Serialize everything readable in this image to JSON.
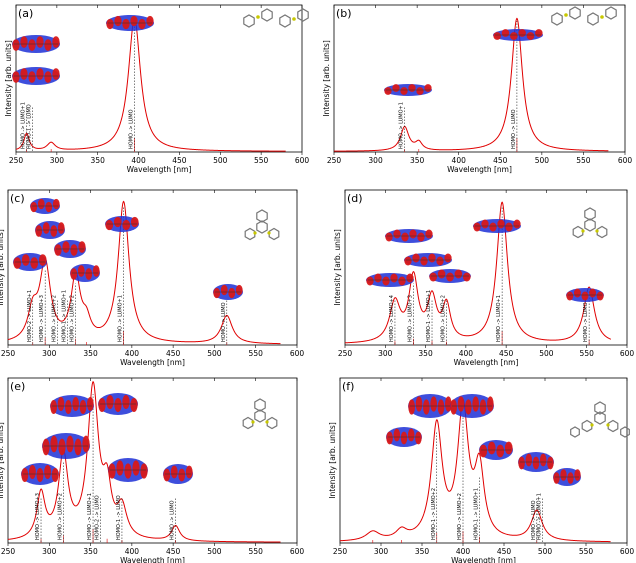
{
  "figure": {
    "colors": {
      "curve": "#e00000",
      "orbital_pos": "#d81818",
      "orbital_neg": "#1c2fd6",
      "molecule": "#777777",
      "sulfur": "#c8c800"
    }
  },
  "chart_data": [
    {
      "type": "line",
      "panel": "(a)",
      "xlabel": "Wavelength [nm]",
      "ylabel": "Intensity [arb. units]",
      "xlim": [
        250,
        600
      ],
      "xticks": [
        250,
        300,
        350,
        400,
        450,
        500,
        550,
        600
      ],
      "peaks": [
        {
          "center": 263,
          "height": 0.13,
          "width": 4
        },
        {
          "center": 293,
          "height": 0.06,
          "width": 6
        },
        {
          "center": 395,
          "height": 1.0,
          "width": 9
        }
      ],
      "transitions": [
        {
          "x": 263,
          "label": "HOMO -> LUMO+1"
        },
        {
          "x": 263,
          "label": "HOMO-1 -> LUMO"
        },
        {
          "x": 395,
          "label": "HOMO -> LUMO"
        }
      ]
    },
    {
      "type": "line",
      "panel": "(b)",
      "xlabel": "Wavelength [nm]",
      "ylabel": "Intensity [arb. units]",
      "xlim": [
        250,
        600
      ],
      "xticks": [
        250,
        300,
        350,
        400,
        450,
        500,
        550,
        600
      ],
      "peaks": [
        {
          "center": 335,
          "height": 0.18,
          "width": 6
        },
        {
          "center": 352,
          "height": 0.06,
          "width": 5
        },
        {
          "center": 470,
          "height": 1.0,
          "width": 8
        }
      ],
      "transitions": [
        {
          "x": 335,
          "label": "HOMO -> LUMO+1"
        },
        {
          "x": 470,
          "label": "HOMO -> LUMO"
        }
      ]
    },
    {
      "type": "line",
      "panel": "(c)",
      "xlabel": "Wavelength [nm]",
      "ylabel": "Intensity [arb. units]",
      "xlim": [
        250,
        600
      ],
      "xticks": [
        250,
        300,
        350,
        400,
        450,
        500,
        550,
        600
      ],
      "peaks": [
        {
          "center": 280,
          "height": 0.2,
          "width": 7
        },
        {
          "center": 295,
          "height": 0.55,
          "width": 8
        },
        {
          "center": 332,
          "height": 0.45,
          "width": 7
        },
        {
          "center": 345,
          "height": 0.12,
          "width": 6
        },
        {
          "center": 390,
          "height": 1.0,
          "width": 8
        },
        {
          "center": 515,
          "height": 0.2,
          "width": 8
        }
      ],
      "transitions": [
        {
          "x": 280,
          "label": "HOMO-2 -> LUMO+1"
        },
        {
          "x": 295,
          "label": "HOMO -> LUMO+3"
        },
        {
          "x": 310,
          "label": "HOMO -> LUMO+2"
        },
        {
          "x": 322,
          "label": "HOMO-1 -> LUMO+1"
        },
        {
          "x": 332,
          "label": "HOMO -> LUMO+2"
        },
        {
          "x": 390,
          "label": "HOMO -> LUMO+1"
        },
        {
          "x": 515,
          "label": "HOMO -> LUMO"
        }
      ]
    },
    {
      "type": "line",
      "panel": "(d)",
      "xlabel": "Wavelength [nm]",
      "ylabel": "Intensity [arb. units]",
      "xlim": [
        250,
        600
      ],
      "xticks": [
        250,
        300,
        350,
        400,
        450,
        500,
        550,
        600
      ],
      "peaks": [
        {
          "center": 312,
          "height": 0.28,
          "width": 8
        },
        {
          "center": 335,
          "height": 0.45,
          "width": 7
        },
        {
          "center": 358,
          "height": 0.3,
          "width": 7
        },
        {
          "center": 376,
          "height": 0.25,
          "width": 6
        },
        {
          "center": 445,
          "height": 1.0,
          "width": 8
        },
        {
          "center": 553,
          "height": 0.4,
          "width": 8
        }
      ],
      "transitions": [
        {
          "x": 312,
          "label": "HOMO -> LUMO+4"
        },
        {
          "x": 335,
          "label": "HOMO -> LUMO+3"
        },
        {
          "x": 358,
          "label": "HOMO-1 -> LUMO+1"
        },
        {
          "x": 376,
          "label": "HOMO -> LUMO+2"
        },
        {
          "x": 445,
          "label": "HOMO -> LUMO+1"
        },
        {
          "x": 553,
          "label": "HOMO -> LUMO"
        }
      ]
    },
    {
      "type": "line",
      "panel": "(e)",
      "xlabel": "Wavelength [nm]",
      "ylabel": "Intensity [arb. units]",
      "xlim": [
        250,
        600
      ],
      "xticks": [
        250,
        300,
        350,
        400,
        450,
        500,
        550,
        600
      ],
      "peaks": [
        {
          "center": 290,
          "height": 0.3,
          "width": 6
        },
        {
          "center": 317,
          "height": 0.55,
          "width": 7
        },
        {
          "center": 353,
          "height": 1.0,
          "width": 8
        },
        {
          "center": 370,
          "height": 0.3,
          "width": 6
        },
        {
          "center": 388,
          "height": 0.2,
          "width": 7
        },
        {
          "center": 453,
          "height": 0.1,
          "width": 6
        }
      ],
      "transitions": [
        {
          "x": 290,
          "label": "HOMO -> LUMO+3"
        },
        {
          "x": 317,
          "label": "HOMO -> LUMO+2"
        },
        {
          "x": 353,
          "label": "HOMO -> LUMO+1"
        },
        {
          "x": 362,
          "label": "HOMO-2 -> LUMO"
        },
        {
          "x": 388,
          "label": "HOMO-1 -> LUMO"
        },
        {
          "x": 453,
          "label": "HOMO -> LUMO"
        }
      ]
    },
    {
      "type": "line",
      "panel": "(f)",
      "xlabel": "Wavelength [nm]",
      "ylabel": "Intensity [arb. units]",
      "xlim": [
        250,
        600
      ],
      "xticks": [
        250,
        300,
        350,
        400,
        450,
        500,
        550,
        600
      ],
      "peaks": [
        {
          "center": 290,
          "height": 0.06,
          "width": 10
        },
        {
          "center": 325,
          "height": 0.06,
          "width": 8
        },
        {
          "center": 368,
          "height": 0.75,
          "width": 8
        },
        {
          "center": 400,
          "height": 0.85,
          "width": 8
        },
        {
          "center": 420,
          "height": 0.45,
          "width": 7
        },
        {
          "center": 490,
          "height": 0.2,
          "width": 8
        }
      ],
      "transitions": [
        {
          "x": 368,
          "label": "HOMO-1 -> LUMO+2"
        },
        {
          "x": 400,
          "label": "HOMO -> LUMO+2"
        },
        {
          "x": 420,
          "label": "HOMO-1 -> LUMO+1"
        },
        {
          "x": 490,
          "label": "HOMO -> LUMO"
        },
        {
          "x": 497,
          "label": "HOMO -> LUMO+1"
        }
      ]
    }
  ]
}
